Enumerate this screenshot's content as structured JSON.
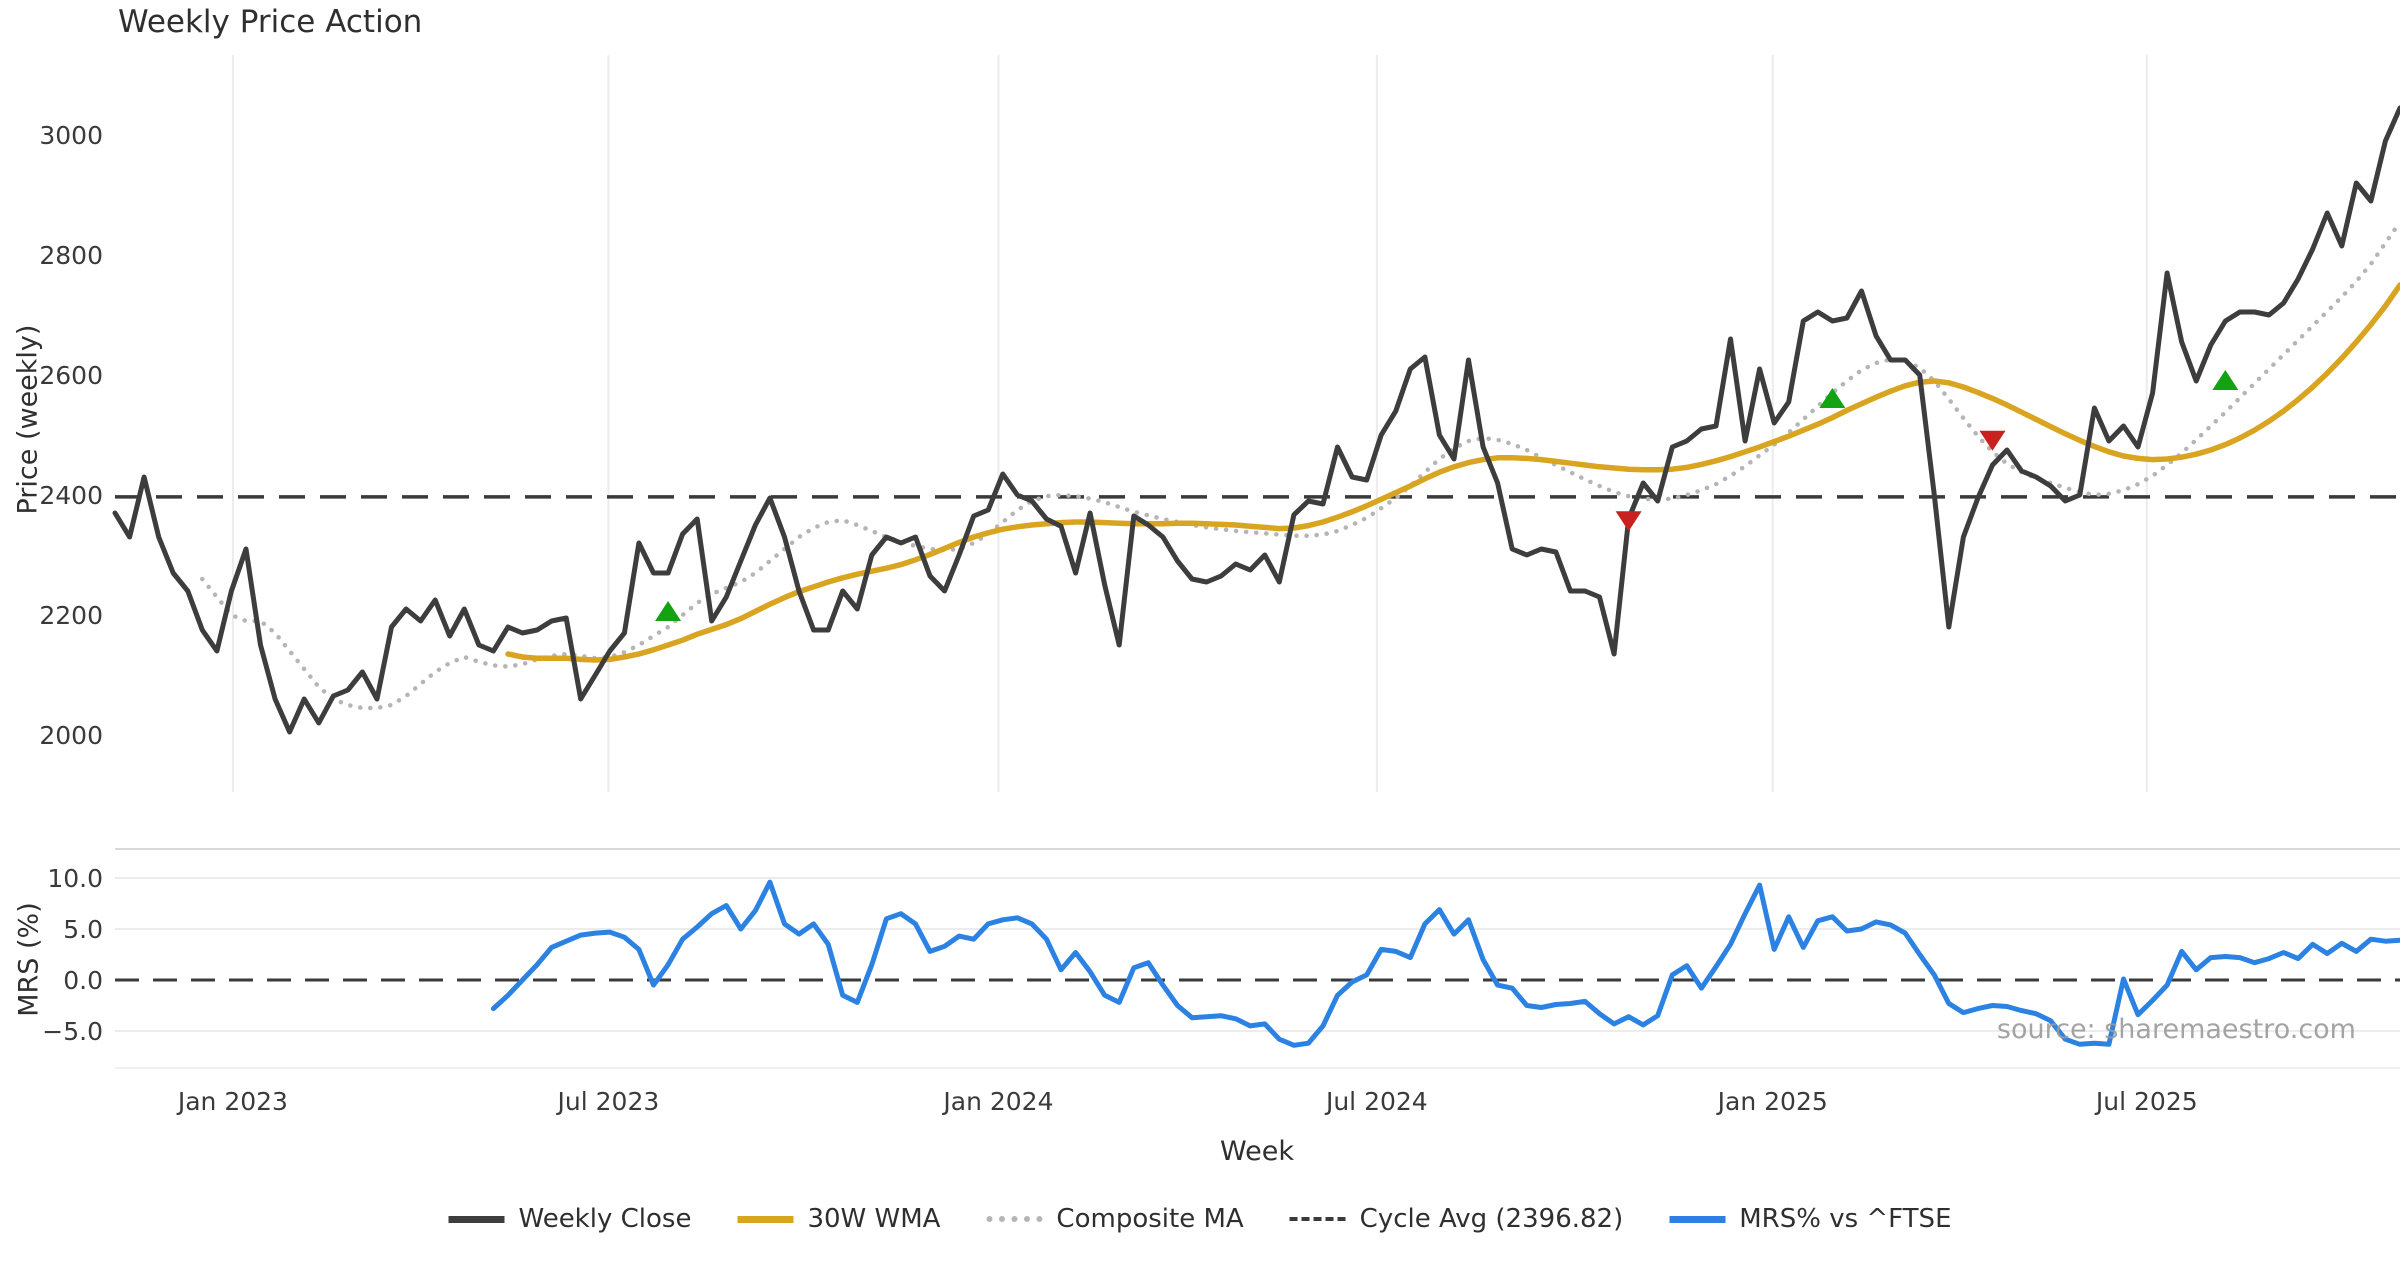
{
  "title": "Weekly Price Action",
  "source_note": "source: sharemaestro.com",
  "axes": {
    "price_label": "Price (weekly)",
    "mrs_label": "MRS (%)",
    "week_label": "Week"
  },
  "colors": {
    "close": "#3d3d3d",
    "wma": "#d9a521",
    "composite": "#b5b5b5",
    "cycle_avg": "#3a3a3a",
    "mrs": "#2b82e2",
    "buy": "#12a212",
    "sell": "#c92020",
    "grid": "#ececec",
    "spine": "#d9d9d9",
    "tick_text": "#3a3a3a"
  },
  "legend": {
    "items": [
      {
        "label": "Weekly Close",
        "style": "solid",
        "color": "#3d3d3d"
      },
      {
        "label": "30W WMA",
        "style": "solid",
        "color": "#d9a521"
      },
      {
        "label": "Composite MA",
        "style": "dotted",
        "color": "#b5b5b5"
      },
      {
        "label": "Cycle Avg (2396.82)",
        "style": "dashed",
        "color": "#3a3a3a"
      },
      {
        "label": "MRS% vs ^FTSE",
        "style": "solid",
        "color": "#2b82e2"
      }
    ]
  },
  "chart_data": {
    "type": "line",
    "title": "Weekly Price Action",
    "xlabel": "Week",
    "x_unit": "week_index",
    "xmax": 157,
    "xticks": [
      {
        "label": "Jan 2023",
        "week": 8.1
      },
      {
        "label": "Jul 2023",
        "week": 33.9
      },
      {
        "label": "Jan 2024",
        "week": 60.7
      },
      {
        "label": "Jul 2024",
        "week": 86.7
      },
      {
        "label": "Jan 2025",
        "week": 113.9
      },
      {
        "label": "Jul 2025",
        "week": 139.6
      }
    ],
    "panels": [
      {
        "name": "price",
        "ylabel": "Price (weekly)",
        "ylim": [
          1905,
          3130
        ],
        "yticks": [
          2000,
          2200,
          2400,
          2600,
          2800,
          3000
        ],
        "grid": "vertical",
        "cycle_avg": 2396.82,
        "series": [
          {
            "name": "Weekly Close",
            "start_week": 0,
            "values": [
              2370,
              2330,
              2430,
              2330,
              2270,
              2240,
              2175,
              2140,
              2240,
              2310,
              2150,
              2060,
              2005,
              2060,
              2020,
              2065,
              2075,
              2105,
              2060,
              2180,
              2210,
              2190,
              2225,
              2165,
              2210,
              2150,
              2140,
              2180,
              2170,
              2175,
              2190,
              2195,
              2060,
              2100,
              2140,
              2170,
              2320,
              2270,
              2270,
              2335,
              2360,
              2190,
              2230,
              2290,
              2350,
              2395,
              2330,
              2240,
              2175,
              2175,
              2240,
              2210,
              2300,
              2330,
              2320,
              2330,
              2265,
              2240,
              2300,
              2365,
              2375,
              2435,
              2400,
              2390,
              2360,
              2348,
              2270,
              2370,
              2250,
              2150,
              2365,
              2350,
              2330,
              2290,
              2260,
              2255,
              2265,
              2285,
              2275,
              2300,
              2255,
              2367,
              2390,
              2385,
              2480,
              2430,
              2425,
              2500,
              2540,
              2610,
              2630,
              2500,
              2460,
              2625,
              2480,
              2420,
              2310,
              2300,
              2310,
              2305,
              2240,
              2240,
              2230,
              2135,
              2360,
              2420,
              2390,
              2480,
              2490,
              2510,
              2515,
              2660,
              2490,
              2610,
              2520,
              2555,
              2690,
              2705,
              2690,
              2695,
              2740,
              2665,
              2625,
              2625,
              2600,
              2400,
              2180,
              2330,
              2395,
              2450,
              2475,
              2440,
              2430,
              2415,
              2390,
              2400,
              2545,
              2490,
              2515,
              2480,
              2570,
              2770,
              2655,
              2590,
              2650,
              2690,
              2705,
              2705,
              2700,
              2720,
              2760,
              2810,
              2870,
              2815,
              2920,
              2890,
              2990,
              3045
            ]
          },
          {
            "name": "30W WMA",
            "start_week": 27,
            "values": [
              2135,
              2130,
              2128,
              2128,
              2128,
              2126,
              2125,
              2126,
              2130,
              2135,
              2142,
              2150,
              2158,
              2168,
              2176,
              2184,
              2194,
              2206,
              2218,
              2229,
              2239,
              2247,
              2255,
              2262,
              2268,
              2273,
              2278,
              2284,
              2292,
              2301,
              2311,
              2321,
              2330,
              2337,
              2343,
              2347,
              2350,
              2352,
              2354,
              2355,
              2355,
              2354,
              2353,
              2352,
              2352,
              2352,
              2353,
              2353,
              2352,
              2351,
              2350,
              2348,
              2346,
              2344,
              2345,
              2349,
              2355,
              2363,
              2372,
              2382,
              2393,
              2404,
              2415,
              2427,
              2438,
              2447,
              2454,
              2459,
              2462,
              2462,
              2461,
              2459,
              2456,
              2453,
              2450,
              2447,
              2445,
              2443,
              2442,
              2442,
              2443,
              2446,
              2451,
              2457,
              2464,
              2472,
              2480,
              2489,
              2498,
              2508,
              2518,
              2529,
              2541,
              2552,
              2563,
              2573,
              2582,
              2588,
              2590,
              2587,
              2580,
              2571,
              2561,
              2550,
              2538,
              2526,
              2514,
              2502,
              2491,
              2481,
              2472,
              2465,
              2461,
              2459,
              2460,
              2463,
              2468,
              2475,
              2484,
              2495,
              2508,
              2523,
              2540,
              2559,
              2580,
              2603,
              2628,
              2655,
              2684,
              2715,
              2750
            ]
          },
          {
            "name": "Composite MA",
            "start_week": 6,
            "values": [
              2260,
              2230,
              2200,
              2190,
              2190,
              2170,
              2140,
              2110,
              2080,
              2060,
              2050,
              2045,
              2045,
              2050,
              2065,
              2085,
              2105,
              2120,
              2130,
              2122,
              2116,
              2114,
              2118,
              2126,
              2132,
              2135,
              2132,
              2128,
              2130,
              2138,
              2150,
              2165,
              2180,
              2200,
              2220,
              2235,
              2245,
              2255,
              2270,
              2290,
              2310,
              2330,
              2345,
              2355,
              2358,
              2350,
              2340,
              2330,
              2322,
              2315,
              2310,
              2308,
              2310,
              2320,
              2335,
              2355,
              2375,
              2390,
              2398,
              2400,
              2398,
              2394,
              2388,
              2380,
              2372,
              2366,
              2360,
              2355,
              2350,
              2346,
              2343,
              2340,
              2338,
              2336,
              2334,
              2332,
              2332,
              2334,
              2340,
              2350,
              2362,
              2378,
              2395,
              2415,
              2438,
              2460,
              2478,
              2490,
              2495,
              2492,
              2485,
              2475,
              2462,
              2450,
              2438,
              2426,
              2415,
              2405,
              2398,
              2394,
              2392,
              2394,
              2400,
              2408,
              2418,
              2432,
              2448,
              2466,
              2484,
              2504,
              2526,
              2548,
              2570,
              2590,
              2608,
              2620,
              2626,
              2624,
              2612,
              2590,
              2560,
              2528,
              2498,
              2472,
              2452,
              2438,
              2428,
              2420,
              2412,
              2405,
              2400,
              2402,
              2408,
              2418,
              2432,
              2450,
              2470,
              2492,
              2515,
              2538,
              2562,
              2586,
              2610,
              2634,
              2658,
              2682,
              2706,
              2730,
              2756,
              2785,
              2820,
              2855
            ]
          }
        ],
        "markers": {
          "buy": [
            {
              "week": 38,
              "value": 2205
            },
            {
              "week": 118,
              "value": 2560
            },
            {
              "week": 145,
              "value": 2590
            }
          ],
          "sell": [
            {
              "week": 104,
              "value": 2358
            },
            {
              "week": 129,
              "value": 2492
            }
          ]
        }
      },
      {
        "name": "mrs",
        "ylabel": "MRS (%)",
        "ylim": [
          -8.6,
          12.8
        ],
        "yticks": [
          -5.0,
          0.0,
          5.0,
          10.0
        ],
        "yticklabels": [
          "−5.0",
          "0.0",
          "5.0",
          "10.0"
        ],
        "grid": "horizontal",
        "zero_line": 0.0,
        "series": [
          {
            "name": "MRS% vs ^FTSE",
            "start_week": 26,
            "values": [
              -2.8,
              -1.5,
              0.0,
              1.5,
              3.2,
              3.8,
              4.4,
              4.6,
              4.7,
              4.2,
              3.0,
              -0.5,
              1.5,
              4.0,
              5.2,
              6.5,
              7.3,
              5.0,
              6.8,
              9.6,
              5.5,
              4.5,
              5.5,
              3.5,
              -1.5,
              -2.2,
              1.5,
              6.0,
              6.5,
              5.5,
              2.8,
              3.3,
              4.3,
              4.0,
              5.5,
              5.9,
              6.1,
              5.5,
              4.0,
              1.0,
              2.7,
              0.8,
              -1.5,
              -2.2,
              1.2,
              1.7,
              -0.5,
              -2.5,
              -3.7,
              -3.6,
              -3.5,
              -3.8,
              -4.5,
              -4.3,
              -5.8,
              -6.4,
              -6.2,
              -4.5,
              -1.5,
              -0.2,
              0.5,
              3.0,
              2.8,
              2.2,
              5.5,
              6.9,
              4.5,
              5.9,
              2.0,
              -0.5,
              -0.8,
              -2.5,
              -2.7,
              -2.4,
              -2.3,
              -2.1,
              -3.3,
              -4.3,
              -3.6,
              -4.4,
              -3.5,
              0.5,
              1.4,
              -0.8,
              1.3,
              3.5,
              6.5,
              9.3,
              3.0,
              6.2,
              3.2,
              5.8,
              6.2,
              4.8,
              5.0,
              5.7,
              5.4,
              4.6,
              2.5,
              0.5,
              -2.3,
              -3.2,
              -2.8,
              -2.5,
              -2.6,
              -3.0,
              -3.3,
              -4.0,
              -5.8,
              -6.3,
              -6.2,
              -6.3,
              0.1,
              -3.4,
              -2.0,
              -0.5,
              2.8,
              1.0,
              2.2,
              2.3,
              2.2,
              1.7,
              2.1,
              2.7,
              2.1,
              3.5,
              2.6,
              3.6,
              2.8,
              4.0,
              3.8,
              3.9
            ]
          }
        ]
      }
    ]
  }
}
